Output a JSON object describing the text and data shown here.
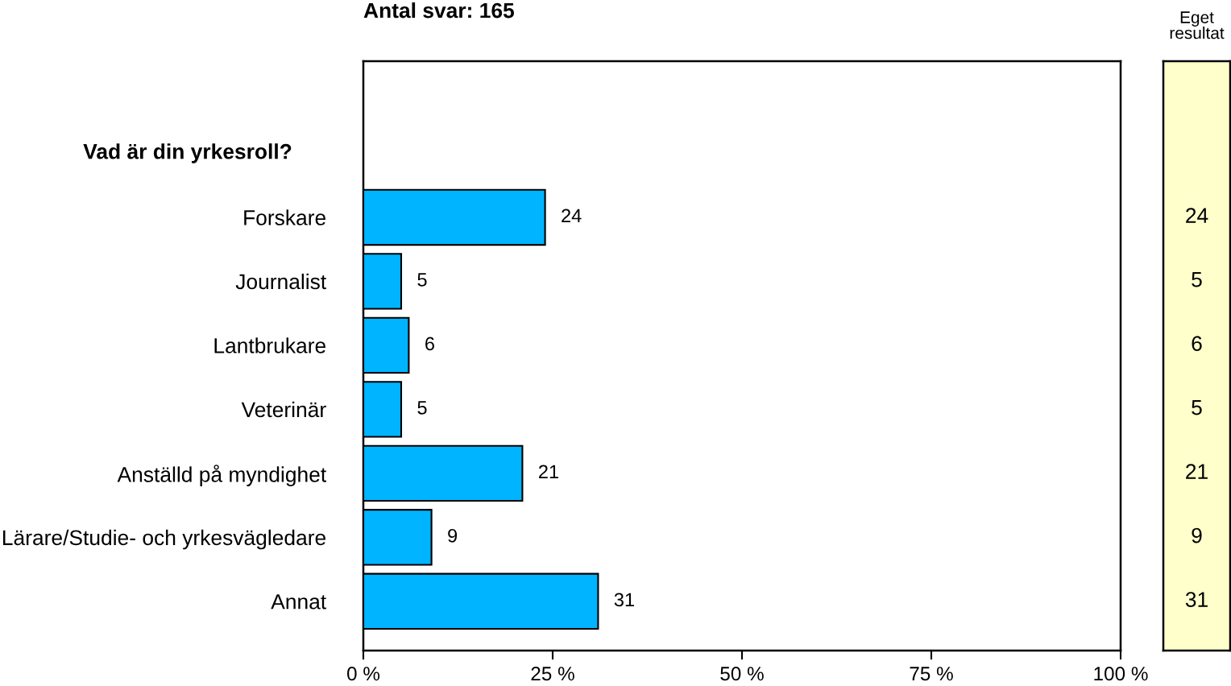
{
  "chart_data": [
    {
      "type": "bar",
      "orientation": "horizontal",
      "title": "Antal svar: 165",
      "subtitle": "Vad är din yrkesroll?",
      "categories": [
        "Forskare",
        "Journalist",
        "Lantbrukare",
        "Veterinär",
        "Anställd på myndighet",
        "Lärare/Studie- och yrkesvägledare",
        "Annat"
      ],
      "values": [
        24,
        5,
        6,
        5,
        21,
        9,
        31
      ],
      "color": "#00b4ff",
      "xlim": [
        0,
        100
      ],
      "xticks": [
        {
          "value": 0,
          "label": "0 %"
        },
        {
          "value": 25,
          "label": "25 %"
        },
        {
          "value": 50,
          "label": "50 %"
        },
        {
          "value": 75,
          "label": "75 %"
        },
        {
          "value": 100,
          "label": "100 %"
        }
      ],
      "data_labels": true
    },
    {
      "type": "other",
      "title": "Eget resultat",
      "values": [
        24,
        5,
        6,
        5,
        21,
        9,
        31
      ],
      "data_labels": true
    }
  ]
}
